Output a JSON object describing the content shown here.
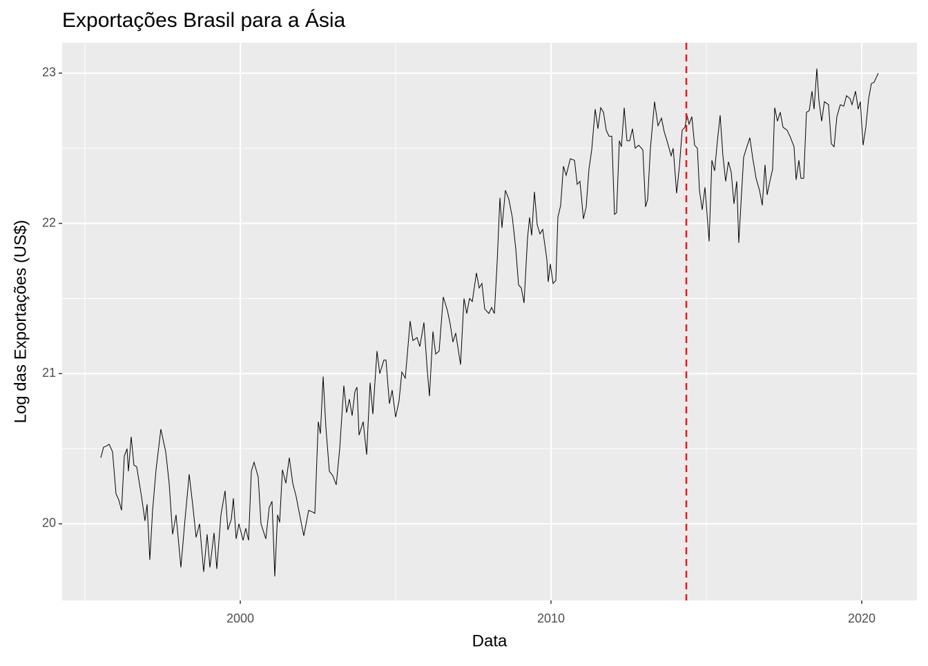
{
  "chart_data": {
    "type": "line",
    "title": "Exportações Brasil para a Ásia",
    "x_label": "Data",
    "y_label": "Log das Exportações (US$)",
    "color": "#000000",
    "xlim": [
      1994.267,
      2021.778
    ],
    "ylim": [
      19.49,
      23.202
    ],
    "xticks": [
      2000,
      2010,
      2020
    ],
    "yticks": [
      20,
      21,
      22,
      23
    ],
    "x_minor_grid": [
      1995,
      2005,
      2015
    ],
    "y_minor_grid": [
      20.5,
      21.5,
      22.5
    ],
    "grid": true,
    "vline": {
      "x": 2014.356,
      "color": "#e31a1c"
    },
    "x": [
      1995.511,
      1995.6,
      1995.711,
      1995.778,
      1995.889,
      1996.0,
      1996.089,
      1996.178,
      1996.267,
      1996.356,
      1996.4,
      1996.489,
      1996.578,
      1996.667,
      1996.822,
      1996.933,
      1997.0,
      1997.089,
      1997.178,
      1997.289,
      1997.444,
      1997.6,
      1997.711,
      1997.822,
      1997.933,
      1998.089,
      1998.222,
      1998.356,
      1998.467,
      1998.578,
      1998.689,
      1998.822,
      1998.933,
      1999.022,
      1999.156,
      1999.244,
      1999.378,
      1999.511,
      1999.6,
      1999.711,
      1999.778,
      1999.867,
      1999.956,
      2000.089,
      2000.178,
      2000.267,
      2000.356,
      2000.444,
      2000.578,
      2000.667,
      2000.822,
      2000.933,
      2001.022,
      2001.111,
      2001.2,
      2001.267,
      2001.356,
      2001.467,
      2001.578,
      2001.689,
      2001.8,
      2001.911,
      2002.044,
      2002.2,
      2002.311,
      2002.4,
      2002.511,
      2002.578,
      2002.667,
      2002.756,
      2002.867,
      2002.978,
      2003.089,
      2003.2,
      2003.333,
      2003.422,
      2003.511,
      2003.6,
      2003.689,
      2003.756,
      2003.822,
      2003.956,
      2004.067,
      2004.178,
      2004.267,
      2004.4,
      2004.489,
      2004.622,
      2004.689,
      2004.8,
      2004.889,
      2005.0,
      2005.111,
      2005.2,
      2005.311,
      2005.467,
      2005.556,
      2005.689,
      2005.778,
      2005.911,
      2006.022,
      2006.089,
      2006.2,
      2006.289,
      2006.4,
      2006.533,
      2006.667,
      2006.756,
      2006.844,
      2006.933,
      2007.089,
      2007.2,
      2007.289,
      2007.378,
      2007.467,
      2007.6,
      2007.689,
      2007.778,
      2007.867,
      2008.0,
      2008.089,
      2008.178,
      2008.267,
      2008.356,
      2008.422,
      2008.533,
      2008.644,
      2008.756,
      2008.867,
      2008.956,
      2009.044,
      2009.133,
      2009.244,
      2009.311,
      2009.378,
      2009.467,
      2009.556,
      2009.644,
      2009.733,
      2009.867,
      2009.911,
      2009.978,
      2010.067,
      2010.156,
      2010.222,
      2010.311,
      2010.4,
      2010.489,
      2010.622,
      2010.756,
      2010.844,
      2010.933,
      2011.044,
      2011.133,
      2011.222,
      2011.311,
      2011.422,
      2011.511,
      2011.6,
      2011.689,
      2011.778,
      2011.867,
      2011.956,
      2012.044,
      2012.111,
      2012.2,
      2012.267,
      2012.356,
      2012.444,
      2012.533,
      2012.622,
      2012.711,
      2012.822,
      2012.956,
      2013.044,
      2013.111,
      2013.2,
      2013.333,
      2013.444,
      2013.556,
      2013.644,
      2013.733,
      2013.867,
      2013.933,
      2014.044,
      2014.133,
      2014.222,
      2014.311,
      2014.378,
      2014.444,
      2014.533,
      2014.622,
      2014.711,
      2014.778,
      2014.867,
      2014.956,
      2015.089,
      2015.178,
      2015.267,
      2015.356,
      2015.444,
      2015.533,
      2015.622,
      2015.711,
      2015.8,
      2015.889,
      2015.978,
      2016.044,
      2016.111,
      2016.2,
      2016.289,
      2016.4,
      2016.489,
      2016.6,
      2016.711,
      2016.8,
      2016.889,
      2016.956,
      2017.044,
      2017.133,
      2017.2,
      2017.289,
      2017.378,
      2017.467,
      2017.6,
      2017.711,
      2017.822,
      2017.889,
      2017.978,
      2018.044,
      2018.133,
      2018.222,
      2018.311,
      2018.4,
      2018.467,
      2018.556,
      2018.622,
      2018.711,
      2018.8,
      2018.933,
      2019.022,
      2019.111,
      2019.2,
      2019.311,
      2019.422,
      2019.511,
      2019.622,
      2019.689,
      2019.8,
      2019.889,
      2019.956,
      2020.044,
      2020.133,
      2020.222,
      2020.311,
      2020.4,
      2020.533
    ],
    "values": [
      20.44,
      20.51,
      20.52,
      20.53,
      20.48,
      20.2,
      20.16,
      20.09,
      20.45,
      20.5,
      20.35,
      20.58,
      20.39,
      20.38,
      20.18,
      20.02,
      20.13,
      19.76,
      20.09,
      20.36,
      20.63,
      20.48,
      20.27,
      19.93,
      20.06,
      19.71,
      20.03,
      20.33,
      20.13,
      19.91,
      20.0,
      19.68,
      19.93,
      19.71,
      19.94,
      19.7,
      20.06,
      20.22,
      19.96,
      20.03,
      20.17,
      19.9,
      20.0,
      19.89,
      19.97,
      19.89,
      20.35,
      20.41,
      20.31,
      20.0,
      19.9,
      20.11,
      20.15,
      19.65,
      20.06,
      20.01,
      20.36,
      20.27,
      20.44,
      20.27,
      20.18,
      20.06,
      19.92,
      20.09,
      20.08,
      20.07,
      20.68,
      20.6,
      20.98,
      20.64,
      20.35,
      20.32,
      20.26,
      20.5,
      20.92,
      20.74,
      20.83,
      20.72,
      20.88,
      20.91,
      20.59,
      20.68,
      20.46,
      20.94,
      20.73,
      21.15,
      21.0,
      21.09,
      21.09,
      20.8,
      20.89,
      20.71,
      20.82,
      21.01,
      20.97,
      21.35,
      21.22,
      21.24,
      21.18,
      21.34,
      21.01,
      20.85,
      21.28,
      21.13,
      21.15,
      21.51,
      21.42,
      21.33,
      21.21,
      21.27,
      21.06,
      21.5,
      21.4,
      21.5,
      21.48,
      21.67,
      21.57,
      21.6,
      21.43,
      21.4,
      21.44,
      21.4,
      21.74,
      22.17,
      21.97,
      22.22,
      22.16,
      22.04,
      21.83,
      21.59,
      21.57,
      21.47,
      21.9,
      22.04,
      21.92,
      22.21,
      21.99,
      21.93,
      21.96,
      21.76,
      21.61,
      21.73,
      21.6,
      21.62,
      22.04,
      22.12,
      22.38,
      22.32,
      22.43,
      22.42,
      22.26,
      22.28,
      22.03,
      22.11,
      22.36,
      22.49,
      22.76,
      22.63,
      22.77,
      22.74,
      22.62,
      22.58,
      22.58,
      22.06,
      22.07,
      22.55,
      22.51,
      22.77,
      22.55,
      22.55,
      22.63,
      22.5,
      22.52,
      22.49,
      22.11,
      22.16,
      22.5,
      22.81,
      22.65,
      22.7,
      22.61,
      22.55,
      22.45,
      22.5,
      22.2,
      22.38,
      22.62,
      22.64,
      22.72,
      22.66,
      22.71,
      22.52,
      22.5,
      22.22,
      22.09,
      22.24,
      21.88,
      22.42,
      22.35,
      22.55,
      22.72,
      22.45,
      22.28,
      22.41,
      22.34,
      22.13,
      22.28,
      21.87,
      22.12,
      22.44,
      22.5,
      22.57,
      22.44,
      22.3,
      22.22,
      22.12,
      22.39,
      22.19,
      22.28,
      22.36,
      22.77,
      22.68,
      22.74,
      22.64,
      22.62,
      22.57,
      22.51,
      22.29,
      22.42,
      22.3,
      22.3,
      22.74,
      22.75,
      22.88,
      22.76,
      23.03,
      22.82,
      22.68,
      22.81,
      22.79,
      22.53,
      22.51,
      22.71,
      22.79,
      22.78,
      22.85,
      22.83,
      22.79,
      22.88,
      22.76,
      22.81,
      22.52,
      22.64,
      22.83,
      22.93,
      22.94,
      23.0
    ]
  }
}
